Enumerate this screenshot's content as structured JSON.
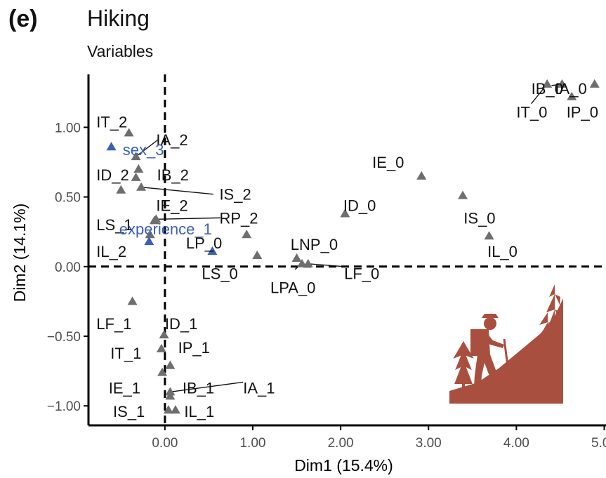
{
  "panel_tag": "(e)",
  "chart_data": {
    "type": "scatter",
    "title": "Hiking",
    "subtitle": "Variables",
    "xlabel": "Dim1 (15.4%)",
    "ylabel": "Dim2 (14.1%)",
    "xlim": [
      -0.87,
      5.02
    ],
    "ylim": [
      -1.14,
      1.38
    ],
    "x_ticks": [
      0,
      1,
      2,
      3,
      4,
      5
    ],
    "x_tick_labels": [
      "0.00",
      "1.00",
      "2.00",
      "3.00",
      "4.00",
      "5.00"
    ],
    "y_ticks": [
      -1,
      -0.5,
      0,
      0.5,
      1
    ],
    "y_tick_labels": [
      "−1.00",
      "−0.50",
      "0.00",
      "0.50",
      "1.00"
    ],
    "reference_lines": [
      {
        "axis": "x",
        "value": 0,
        "style": "dashed"
      },
      {
        "axis": "y",
        "value": 0,
        "style": "dashed"
      }
    ],
    "grid": false,
    "colors": {
      "active": "#6e6e6e",
      "supplementary": "#3b5fb5",
      "illustration": "#a84f3f"
    },
    "points": [
      {
        "label": "IT_0",
        "x": 4.35,
        "y": 1.31,
        "group": "active"
      },
      {
        "label": "IB_0",
        "x": 4.52,
        "y": 1.31,
        "group": "active"
      },
      {
        "label": "IA_0",
        "x": 4.89,
        "y": 1.31,
        "group": "active"
      },
      {
        "label": "IP_0",
        "x": 4.63,
        "y": 1.22,
        "group": "active"
      },
      {
        "label": "IE_0",
        "x": 2.92,
        "y": 0.65,
        "group": "active"
      },
      {
        "label": "IS_0",
        "x": 3.39,
        "y": 0.51,
        "group": "active"
      },
      {
        "label": "IL_0",
        "x": 3.69,
        "y": 0.22,
        "group": "active"
      },
      {
        "label": "ID_0",
        "x": 2.05,
        "y": 0.38,
        "group": "active"
      },
      {
        "label": "LNP_0",
        "x": 1.5,
        "y": 0.06,
        "group": "active"
      },
      {
        "label": "LF_0",
        "x": 1.63,
        "y": 0.02,
        "group": "active"
      },
      {
        "label": "LPA_0",
        "x": 1.56,
        "y": 0.02,
        "group": "active"
      },
      {
        "label": "LP_0",
        "x": 0.93,
        "y": 0.23,
        "group": "active"
      },
      {
        "label": "LS_0",
        "x": 1.05,
        "y": 0.08,
        "group": "active"
      },
      {
        "label": "RP_2",
        "x": -0.1,
        "y": 0.34,
        "group": "active"
      },
      {
        "label": "IT_2",
        "x": -0.41,
        "y": 0.96,
        "group": "active"
      },
      {
        "label": "IA_2",
        "x": -0.33,
        "y": 0.79,
        "group": "active"
      },
      {
        "label": "IB_2",
        "x": -0.3,
        "y": 0.7,
        "group": "active"
      },
      {
        "label": "ID_2",
        "x": -0.33,
        "y": 0.64,
        "group": "active"
      },
      {
        "label": "IS_2",
        "x": -0.27,
        "y": 0.57,
        "group": "active"
      },
      {
        "label": "IE_2",
        "x": -0.5,
        "y": 0.55,
        "group": "active"
      },
      {
        "label": "LS_1",
        "x": -0.12,
        "y": 0.33,
        "group": "active"
      },
      {
        "label": "IL_2",
        "x": -0.17,
        "y": 0.23,
        "group": "active"
      },
      {
        "label": "LF_1",
        "x": -0.37,
        "y": -0.25,
        "group": "active"
      },
      {
        "label": "ID_1",
        "x": -0.01,
        "y": -0.49,
        "group": "active"
      },
      {
        "label": "IT_1",
        "x": -0.04,
        "y": -0.59,
        "group": "active"
      },
      {
        "label": "IP_1",
        "x": 0.06,
        "y": -0.71,
        "group": "active"
      },
      {
        "label": "IE_1",
        "x": -0.03,
        "y": -0.76,
        "group": "active"
      },
      {
        "label": "IB_1",
        "x": 0.06,
        "y": -0.93,
        "group": "active"
      },
      {
        "label": "IA_1",
        "x": 0.06,
        "y": -0.9,
        "group": "active"
      },
      {
        "label": "IS_1",
        "x": 0.04,
        "y": -1.03,
        "group": "active"
      },
      {
        "label": "IL_1",
        "x": 0.12,
        "y": -1.03,
        "group": "active"
      },
      {
        "label": "sex_3",
        "x": -0.61,
        "y": 0.86,
        "group": "supplementary"
      },
      {
        "label": "experience_1",
        "x": -0.18,
        "y": 0.18,
        "group": "supplementary"
      },
      {
        "label": "",
        "x": 0.54,
        "y": 0.11,
        "group": "supplementary"
      }
    ]
  }
}
